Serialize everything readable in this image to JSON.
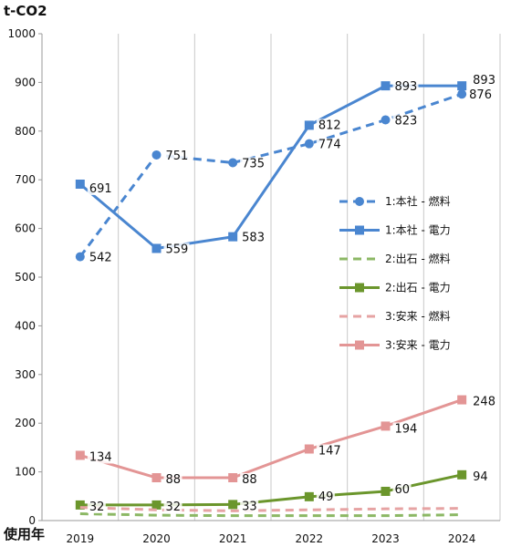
{
  "chart_data": {
    "type": "line",
    "unit_label": "t-CO2",
    "xlabel": "使用年",
    "ylabel": "",
    "ylim": [
      0,
      1000
    ],
    "y_ticks": [
      0,
      100,
      200,
      300,
      400,
      500,
      600,
      700,
      800,
      900,
      1000
    ],
    "categories": [
      "2019",
      "2020",
      "2021",
      "2022",
      "2023",
      "2024"
    ],
    "grid": "vertical",
    "legend_position": "right-middle",
    "series": [
      {
        "name": "1:本社 - 燃料",
        "color": "#4a86d0",
        "style": "dashed",
        "marker": "circle",
        "values": [
          542,
          751,
          735,
          774,
          823,
          876
        ],
        "labels": [
          "542",
          "751",
          "735",
          "774",
          "823",
          "876"
        ]
      },
      {
        "name": "1:本社 - 電力",
        "color": "#4a86d0",
        "style": "solid",
        "marker": "square",
        "values": [
          691,
          559,
          583,
          812,
          893,
          893
        ],
        "labels": [
          "691",
          "559",
          "583",
          "812",
          "893",
          "893"
        ]
      },
      {
        "name": "2:出石 - 燃料",
        "color": "#8cb865",
        "style": "dashed",
        "marker": "none",
        "values": [
          14,
          11,
          10,
          10,
          10,
          12
        ],
        "labels": []
      },
      {
        "name": "2:出石 - 電力",
        "color": "#6b962c",
        "style": "solid",
        "marker": "square",
        "values": [
          32,
          32,
          33,
          49,
          60,
          94
        ],
        "labels": [
          "32",
          "32",
          "33",
          "49",
          "60",
          "94"
        ]
      },
      {
        "name": "3:安来 - 燃料",
        "color": "#e6a3a3",
        "style": "dashed",
        "marker": "none",
        "values": [
          27,
          22,
          20,
          22,
          24,
          25
        ],
        "labels": []
      },
      {
        "name": "3:安来 - 電力",
        "color": "#e39595",
        "style": "solid",
        "marker": "square",
        "values": [
          134,
          88,
          88,
          147,
          194,
          248
        ],
        "labels": [
          "134",
          "88",
          "88",
          "147",
          "194",
          "248"
        ]
      }
    ]
  }
}
